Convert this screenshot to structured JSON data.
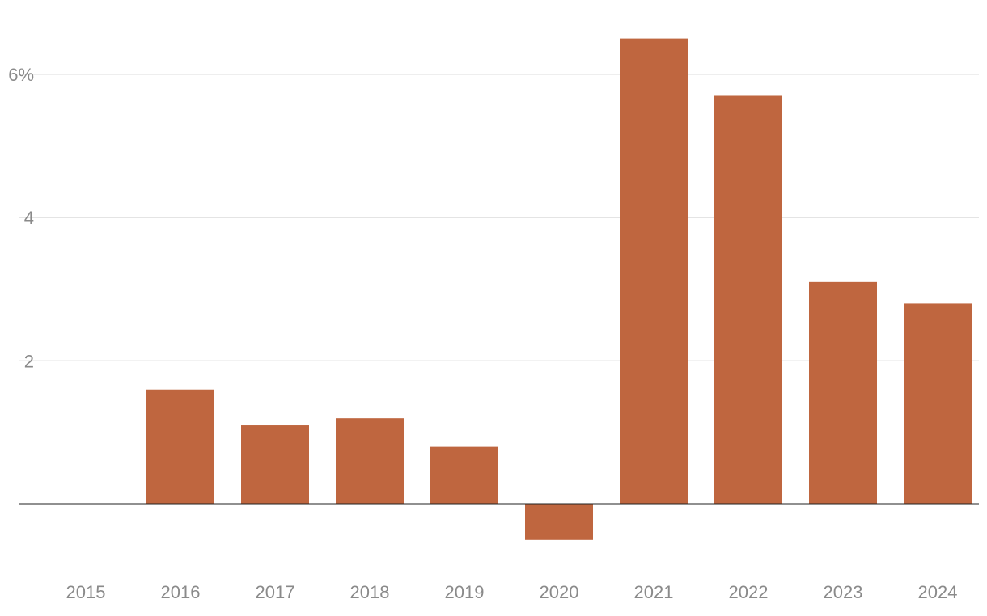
{
  "chart_data": {
    "type": "bar",
    "title": "",
    "xlabel": "",
    "ylabel": "",
    "categories": [
      "2015",
      "2016",
      "2017",
      "2018",
      "2019",
      "2020",
      "2021",
      "2022",
      "2023",
      "2024"
    ],
    "values": [
      0,
      1.6,
      1.1,
      1.2,
      0.8,
      -0.5,
      6.5,
      5.7,
      3.1,
      2.8
    ],
    "ylim": [
      -0.9,
      6.5
    ],
    "yticks": [
      {
        "value": 2,
        "label": "2"
      },
      {
        "value": 4,
        "label": "4"
      },
      {
        "value": 6,
        "label": "6%"
      }
    ],
    "grid": true,
    "bar_color": "#bf663f"
  }
}
